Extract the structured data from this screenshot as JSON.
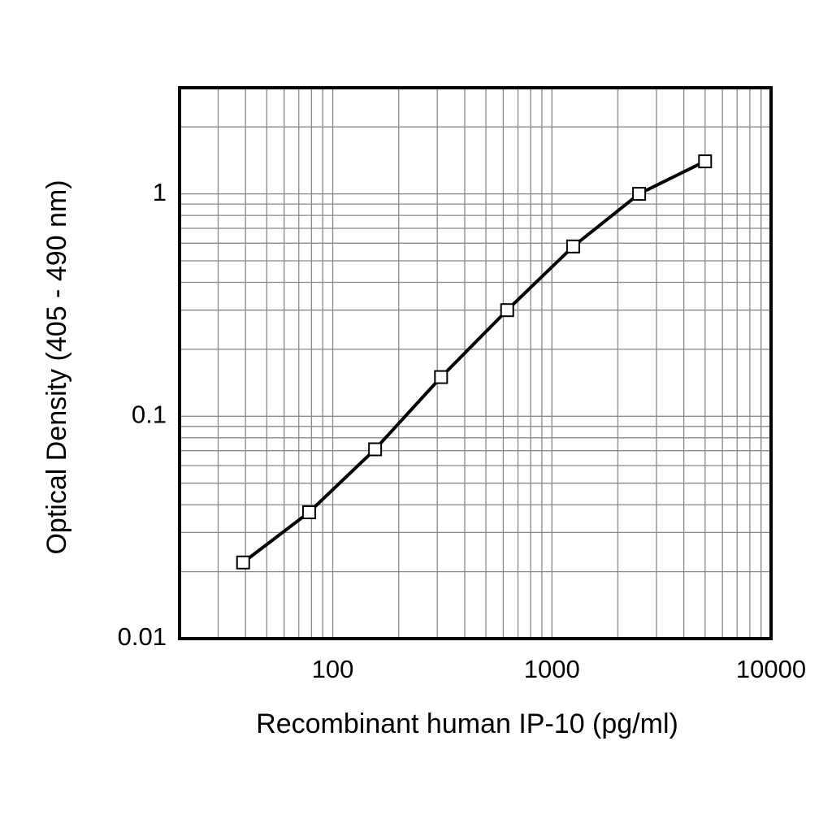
{
  "chart_data": {
    "type": "line",
    "x_label": "Recombinant human IP-10 (pg/ml)",
    "y_label": "Optical Density (405 - 490 nm)",
    "x": [
      39,
      78,
      156,
      312,
      625,
      1250,
      2500,
      5000
    ],
    "series": [
      {
        "values": [
          0.022,
          0.037,
          0.071,
          0.15,
          0.3,
          0.58,
          1.0,
          1.4
        ],
        "color": "#000000"
      }
    ],
    "xscale": "log",
    "yscale": "log",
    "xlim": [
      20,
      10000
    ],
    "ylim": [
      0.01,
      3
    ],
    "xticks": [
      100,
      1000,
      10000
    ],
    "yticks": [
      0.01,
      0.1,
      1
    ],
    "xgrid_minor": [
      20,
      30,
      40,
      50,
      60,
      70,
      80,
      90,
      200,
      300,
      400,
      500,
      600,
      700,
      800,
      900,
      2000,
      3000,
      4000,
      5000,
      6000,
      7000,
      8000,
      9000
    ],
    "ygrid_minor": [
      0.02,
      0.03,
      0.04,
      0.05,
      0.06,
      0.07,
      0.08,
      0.09,
      0.2,
      0.3,
      0.4,
      0.5,
      0.6,
      0.7,
      0.8,
      0.9,
      2
    ],
    "grid": true,
    "marker": "square"
  }
}
